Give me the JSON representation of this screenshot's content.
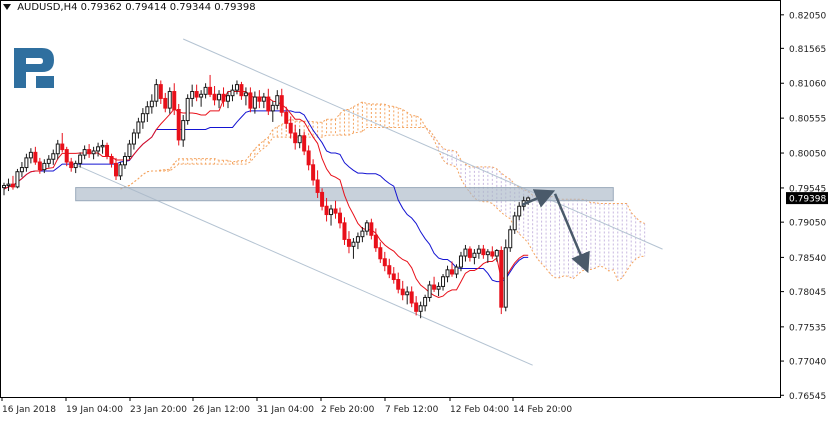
{
  "header": {
    "symbol": "AUDUSD,H4",
    "ohlc": "0.79362 0.79414 0.79344 0.79398"
  },
  "logo": {
    "name": "broker-logo",
    "color": "#2f6f9f"
  },
  "colors": {
    "bull": "#1a1a1a",
    "bear": "#e8101a",
    "tenkan": "#e8101a",
    "kijun": "#1414d2",
    "cloud": "#f4a460",
    "cloud_bear": "#c8b8e0",
    "channel": "#b4c3d2",
    "zone": "#aab8c8",
    "arrow": "#4a5a6a",
    "price_tag": "#000000"
  },
  "chart_data": {
    "type": "candlestick",
    "title": "AUDUSD,H4",
    "y_ticks": [
      "0.82050",
      "0.81565",
      "0.81060",
      "0.80555",
      "0.80050",
      "0.79545",
      "0.79398",
      "0.79050",
      "0.78540",
      "0.78045",
      "0.77535",
      "0.77040",
      "0.76545"
    ],
    "ylim": [
      0.7652,
      0.8225
    ],
    "x_ticks": [
      "16 Jan 2018",
      "19 Jan 04:00",
      "23 Jan 20:00",
      "26 Jan 12:00",
      "31 Jan 04:00",
      "2 Feb 20:00",
      "7 Feb 12:00",
      "12 Feb 04:00",
      "14 Feb 20:00"
    ],
    "current_price": "0.79398",
    "candles": [
      [
        0.7955,
        0.7962,
        0.7944,
        0.7958
      ],
      [
        0.7958,
        0.7968,
        0.795,
        0.796
      ],
      [
        0.796,
        0.7972,
        0.7952,
        0.7956
      ],
      [
        0.7956,
        0.7982,
        0.7954,
        0.7978
      ],
      [
        0.7978,
        0.7992,
        0.797,
        0.7984
      ],
      [
        0.7984,
        0.8004,
        0.7978,
        0.7998
      ],
      [
        0.7998,
        0.8012,
        0.799,
        0.8006
      ],
      [
        0.8006,
        0.8014,
        0.7988,
        0.7992
      ],
      [
        0.7992,
        0.7998,
        0.7975,
        0.7981
      ],
      [
        0.7981,
        0.7996,
        0.7976,
        0.799
      ],
      [
        0.799,
        0.8002,
        0.7984,
        0.7996
      ],
      [
        0.7996,
        0.801,
        0.7988,
        0.8004
      ],
      [
        0.8004,
        0.8024,
        0.7996,
        0.8018
      ],
      [
        0.8018,
        0.8034,
        0.8006,
        0.801
      ],
      [
        0.801,
        0.8014,
        0.7986,
        0.7992
      ],
      [
        0.7992,
        0.7998,
        0.7978,
        0.7984
      ],
      [
        0.7984,
        0.7994,
        0.7976,
        0.799
      ],
      [
        0.799,
        0.8006,
        0.7984,
        0.8002
      ],
      [
        0.8002,
        0.8016,
        0.7996,
        0.801
      ],
      [
        0.801,
        0.8018,
        0.7998,
        0.8004
      ],
      [
        0.8004,
        0.8014,
        0.7996,
        0.8008
      ],
      [
        0.8008,
        0.802,
        0.8,
        0.8014
      ],
      [
        0.8014,
        0.8024,
        0.8004,
        0.8016
      ],
      [
        0.8016,
        0.802,
        0.7996,
        0.8
      ],
      [
        0.8,
        0.8004,
        0.7984,
        0.799
      ],
      [
        0.799,
        0.7998,
        0.7966,
        0.7972
      ],
      [
        0.7972,
        0.7992,
        0.7966,
        0.7988
      ],
      [
        0.7988,
        0.8006,
        0.7982,
        0.8
      ],
      [
        0.8,
        0.8024,
        0.7996,
        0.8018
      ],
      [
        0.8018,
        0.804,
        0.801,
        0.8034
      ],
      [
        0.8034,
        0.8056,
        0.8026,
        0.805
      ],
      [
        0.805,
        0.807,
        0.804,
        0.8062
      ],
      [
        0.8062,
        0.808,
        0.805,
        0.8072
      ],
      [
        0.8072,
        0.809,
        0.8062,
        0.808
      ],
      [
        0.808,
        0.8112,
        0.8072,
        0.8104
      ],
      [
        0.8104,
        0.811,
        0.8076,
        0.8084
      ],
      [
        0.8084,
        0.8092,
        0.8064,
        0.807
      ],
      [
        0.807,
        0.81,
        0.8062,
        0.8094
      ],
      [
        0.8094,
        0.8106,
        0.806,
        0.8068
      ],
      [
        0.8068,
        0.8076,
        0.8016,
        0.8024
      ],
      [
        0.8024,
        0.806,
        0.8014,
        0.8052
      ],
      [
        0.8052,
        0.809,
        0.8046,
        0.8084
      ],
      [
        0.8084,
        0.8104,
        0.8072,
        0.8094
      ],
      [
        0.8094,
        0.8104,
        0.808,
        0.8086
      ],
      [
        0.8086,
        0.8096,
        0.8072,
        0.809
      ],
      [
        0.809,
        0.8106,
        0.8084,
        0.81
      ],
      [
        0.81,
        0.8118,
        0.8086,
        0.809
      ],
      [
        0.809,
        0.8102,
        0.8074,
        0.8082
      ],
      [
        0.8082,
        0.8096,
        0.807,
        0.809
      ],
      [
        0.809,
        0.81,
        0.8072,
        0.808
      ],
      [
        0.808,
        0.8094,
        0.807,
        0.8088
      ],
      [
        0.8088,
        0.8104,
        0.808,
        0.8096
      ],
      [
        0.8096,
        0.811,
        0.809,
        0.8104
      ],
      [
        0.8104,
        0.8108,
        0.8082,
        0.8088
      ],
      [
        0.8088,
        0.81,
        0.8074,
        0.8092
      ],
      [
        0.8092,
        0.81,
        0.8064,
        0.807
      ],
      [
        0.807,
        0.8094,
        0.8062,
        0.8086
      ],
      [
        0.8086,
        0.8096,
        0.807,
        0.808
      ],
      [
        0.808,
        0.8092,
        0.807,
        0.8086
      ],
      [
        0.8086,
        0.8098,
        0.806,
        0.8066
      ],
      [
        0.8066,
        0.808,
        0.805,
        0.8074
      ],
      [
        0.8074,
        0.8096,
        0.8068,
        0.8088
      ],
      [
        0.8088,
        0.8098,
        0.8058,
        0.8064
      ],
      [
        0.8064,
        0.8072,
        0.804,
        0.8048
      ],
      [
        0.8048,
        0.8058,
        0.8026,
        0.8034
      ],
      [
        0.8034,
        0.8046,
        0.801,
        0.802
      ],
      [
        0.802,
        0.804,
        0.8012,
        0.803
      ],
      [
        0.803,
        0.8036,
        0.8002,
        0.8008
      ],
      [
        0.8008,
        0.8016,
        0.798,
        0.7988
      ],
      [
        0.7988,
        0.7996,
        0.7958,
        0.7966
      ],
      [
        0.7966,
        0.798,
        0.794,
        0.7948
      ],
      [
        0.7948,
        0.7954,
        0.7922,
        0.7928
      ],
      [
        0.7928,
        0.794,
        0.7906,
        0.7916
      ],
      [
        0.7916,
        0.793,
        0.79,
        0.7924
      ],
      [
        0.7924,
        0.7936,
        0.791,
        0.7918
      ],
      [
        0.7918,
        0.7926,
        0.7896,
        0.7904
      ],
      [
        0.7904,
        0.7912,
        0.7872,
        0.788
      ],
      [
        0.788,
        0.7892,
        0.786,
        0.787
      ],
      [
        0.787,
        0.7882,
        0.7852,
        0.7876
      ],
      [
        0.7876,
        0.789,
        0.7866,
        0.7884
      ],
      [
        0.7884,
        0.7898,
        0.7876,
        0.7892
      ],
      [
        0.7892,
        0.7908,
        0.7886,
        0.7904
      ],
      [
        0.7904,
        0.791,
        0.788,
        0.7886
      ],
      [
        0.7886,
        0.7896,
        0.7862,
        0.7868
      ],
      [
        0.7868,
        0.7876,
        0.7846,
        0.7852
      ],
      [
        0.7852,
        0.7862,
        0.7834,
        0.7842
      ],
      [
        0.7842,
        0.7852,
        0.7824,
        0.783
      ],
      [
        0.783,
        0.784,
        0.7816,
        0.7822
      ],
      [
        0.7822,
        0.7832,
        0.7802,
        0.7808
      ],
      [
        0.7808,
        0.782,
        0.7792,
        0.78
      ],
      [
        0.78,
        0.7812,
        0.7786,
        0.7804
      ],
      [
        0.7804,
        0.7812,
        0.7782,
        0.7788
      ],
      [
        0.7788,
        0.7798,
        0.777,
        0.7776
      ],
      [
        0.7776,
        0.779,
        0.7766,
        0.7784
      ],
      [
        0.7784,
        0.78,
        0.7776,
        0.7796
      ],
      [
        0.7796,
        0.782,
        0.779,
        0.7814
      ],
      [
        0.7814,
        0.7826,
        0.7804,
        0.7808
      ],
      [
        0.7808,
        0.7818,
        0.7798,
        0.7812
      ],
      [
        0.7812,
        0.783,
        0.7806,
        0.7826
      ],
      [
        0.7826,
        0.7842,
        0.7818,
        0.7836
      ],
      [
        0.7836,
        0.7848,
        0.7826,
        0.783
      ],
      [
        0.783,
        0.7844,
        0.7824,
        0.784
      ],
      [
        0.784,
        0.7862,
        0.7834,
        0.7856
      ],
      [
        0.7856,
        0.7872,
        0.7848,
        0.7866
      ],
      [
        0.7866,
        0.787,
        0.7848,
        0.7854
      ],
      [
        0.7854,
        0.7866,
        0.7844,
        0.786
      ],
      [
        0.786,
        0.7872,
        0.7852,
        0.7866
      ],
      [
        0.7866,
        0.7872,
        0.7852,
        0.7858
      ],
      [
        0.7858,
        0.7866,
        0.7846,
        0.7862
      ],
      [
        0.7862,
        0.787,
        0.7852,
        0.7856
      ],
      [
        0.7856,
        0.7866,
        0.7848,
        0.7864
      ],
      [
        0.7864,
        0.787,
        0.7772,
        0.7782
      ],
      [
        0.7782,
        0.788,
        0.7776,
        0.7868
      ],
      [
        0.7868,
        0.79,
        0.7862,
        0.7894
      ],
      [
        0.7894,
        0.792,
        0.7888,
        0.7914
      ],
      [
        0.7914,
        0.7934,
        0.7908,
        0.7928
      ],
      [
        0.7928,
        0.7942,
        0.7922,
        0.7936
      ],
      [
        0.7936,
        0.7942,
        0.793,
        0.794
      ]
    ],
    "annotations": [
      "descending-channel-upper-line",
      "descending-channel-lower-line",
      "resistance-zone",
      "forecast-arrow-up",
      "forecast-arrow-down"
    ]
  }
}
